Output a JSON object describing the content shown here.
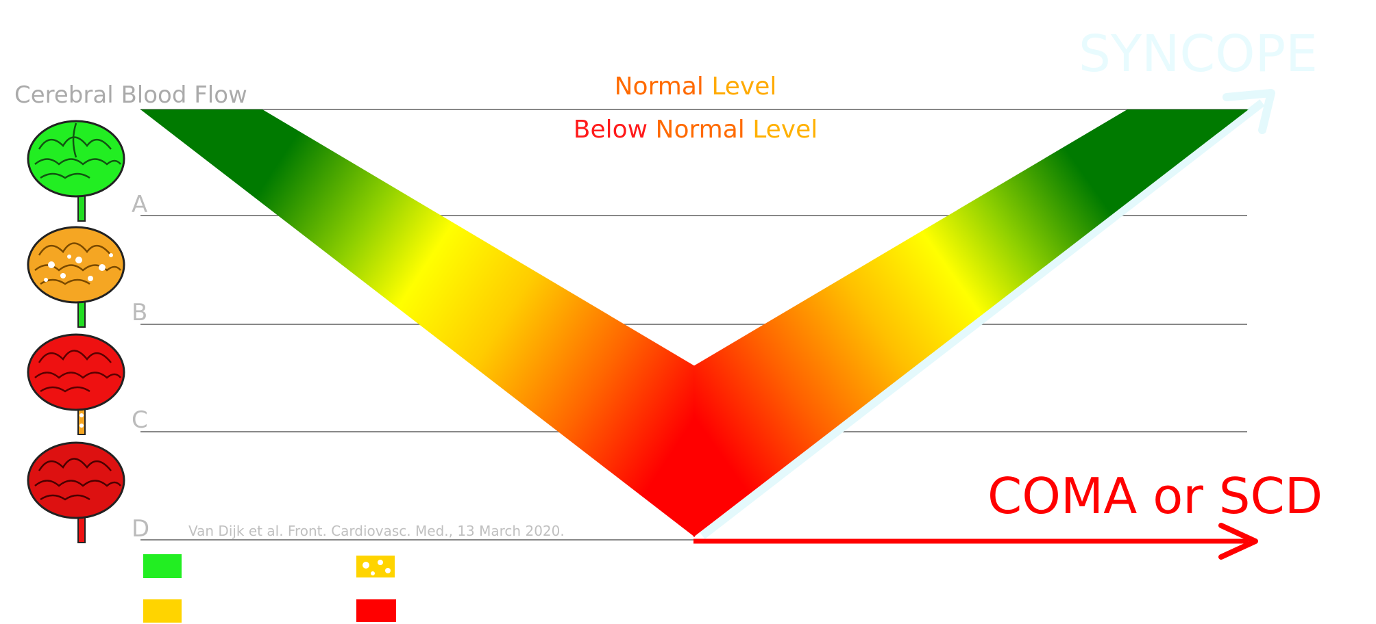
{
  "diagram": {
    "y_axis_label": "Cerebral Blood Flow",
    "levels": [
      {
        "id": "normal",
        "label": "",
        "text_parts": [
          {
            "text": "Normal ",
            "color": "#ff6a00"
          },
          {
            "text": "Level",
            "color": "#ffaa00"
          }
        ]
      },
      {
        "id": "A",
        "label": "A"
      },
      {
        "id": "B",
        "label": "B"
      },
      {
        "id": "C",
        "label": "C"
      },
      {
        "id": "D",
        "label": "D"
      }
    ],
    "below_normal_parts": [
      {
        "text": "Below ",
        "color": "#ff1a1a"
      },
      {
        "text": "Normal ",
        "color": "#ff6a00"
      },
      {
        "text": "Level",
        "color": "#ffb000"
      }
    ],
    "outcomes": {
      "recovery": "SYNCOPE",
      "no_recovery": "COMA or SCD"
    },
    "citation": "Van Dijk et al. Front. Cardiovasc. Med., 13 March 2020.",
    "brain_states": [
      {
        "level": "normal",
        "color": "#22ee22",
        "stem_color": "#22dd22"
      },
      {
        "level": "A",
        "color": "#f5a623",
        "stem_color": "#22dd22",
        "spots": true
      },
      {
        "level": "B",
        "color": "#ee1111",
        "stem_color": "#f5a623",
        "stem_spots": true
      },
      {
        "level": "C",
        "color": "#dd1111",
        "stem_color": "#ee1111"
      }
    ],
    "legend": [
      {
        "swatch": "green",
        "color": "#22ee22",
        "label": ""
      },
      {
        "swatch": "yellow-spotted",
        "color": "#ffd400",
        "label": ""
      },
      {
        "swatch": "yellow",
        "color": "#ffd400",
        "label": ""
      },
      {
        "swatch": "red",
        "color": "#ff0000",
        "label": ""
      }
    ],
    "colors": {
      "dark_green": "#008000",
      "yellow": "#ffff00",
      "red": "#ff0000",
      "syncope_cyan": "#e8fbfe",
      "line_gray": "#888888",
      "label_gray": "#aaaaaa"
    }
  }
}
